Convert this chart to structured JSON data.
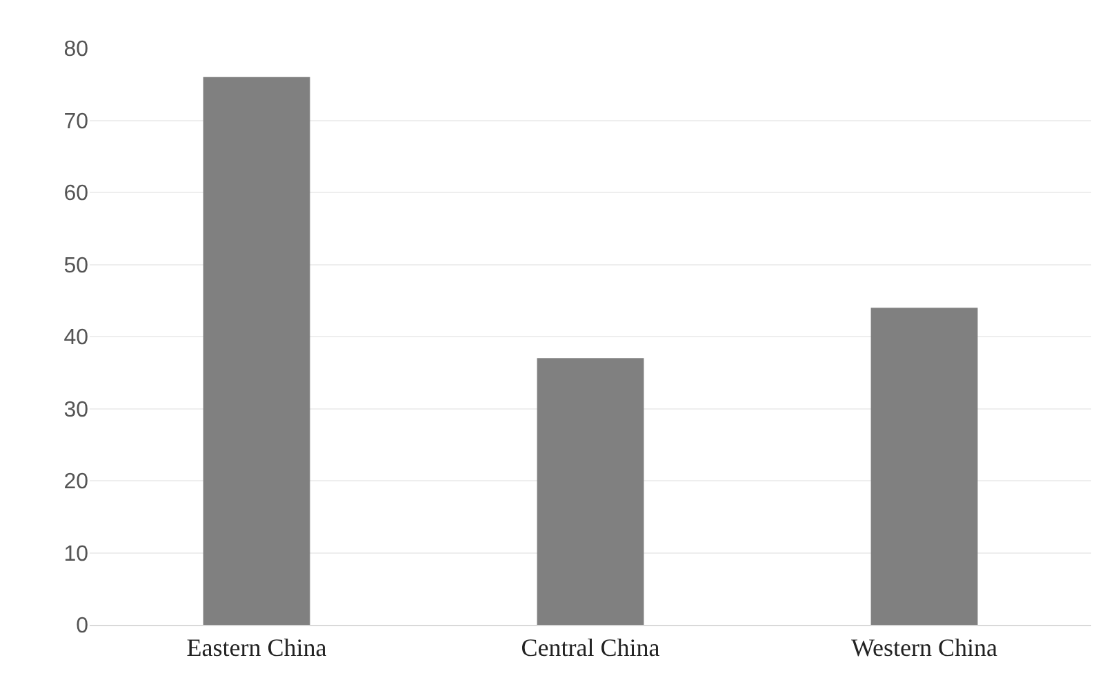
{
  "chart_data": {
    "type": "bar",
    "categories": [
      "Eastern China",
      "Central China",
      "Western China"
    ],
    "values": [
      76,
      37,
      44
    ],
    "color": "#808080",
    "ylim": [
      0,
      80
    ],
    "yticks": [
      0,
      10,
      20,
      30,
      40,
      50,
      60,
      70,
      80
    ],
    "grid": "y"
  }
}
